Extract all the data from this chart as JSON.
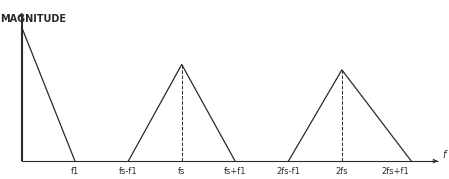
{
  "title": "",
  "ylabel": "MAGNITUDE",
  "xlabel": "f",
  "background_color": "#ffffff",
  "line_color": "#2a2a2a",
  "dashed_color": "#2a2a2a",
  "tick_labels": [
    "f1",
    "fs-f1",
    "fs",
    "fs+f1",
    "2fs-f1",
    "2fs",
    "2fs+f1"
  ],
  "tick_positions": [
    1,
    2,
    3,
    4,
    5,
    6,
    7
  ],
  "triangles": [
    {
      "x": [
        0,
        0,
        1
      ],
      "y": [
        0,
        1.0,
        0
      ]
    },
    {
      "x": [
        2,
        3,
        4
      ],
      "y": [
        0,
        0.72,
        0
      ]
    },
    {
      "x": [
        5,
        6,
        7.3
      ],
      "y": [
        0,
        0.68,
        0
      ]
    }
  ],
  "vlines": [
    3,
    6
  ],
  "xlim": [
    -0.15,
    7.9
  ],
  "ylim": [
    -0.05,
    1.18
  ],
  "figsize": [
    4.49,
    1.79
  ],
  "dpi": 100,
  "ylabel_fontsize": 7,
  "tick_fontsize": 6,
  "axis_lw": 0.8,
  "tri_lw": 0.9
}
